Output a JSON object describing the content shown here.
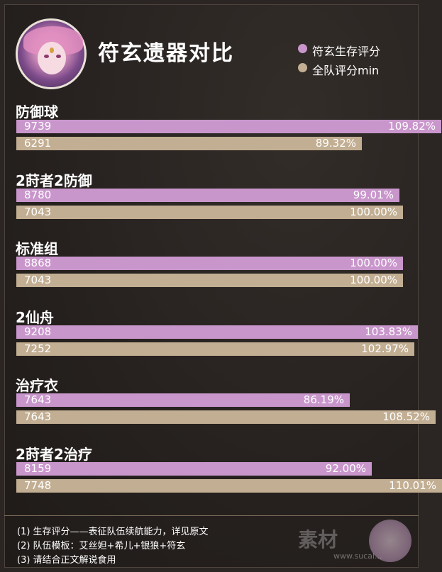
{
  "title": "符玄遗器对比",
  "legend": [
    {
      "label": "符玄生存评分",
      "color": "#c996cc"
    },
    {
      "label": "全队评分min",
      "color": "#c2ae92"
    }
  ],
  "colors": {
    "series1": "#c996cc",
    "series2": "#c2ae92",
    "background": "#26211f"
  },
  "chart_data": {
    "type": "bar",
    "orientation": "horizontal",
    "title": "符玄遗器对比",
    "categories": [
      "防御球",
      "2莳者2防御",
      "标准组",
      "2仙舟",
      "治疗衣",
      "2莳者2治疗"
    ],
    "series": [
      {
        "name": "符玄生存评分",
        "values": [
          9739,
          8780,
          8868,
          9208,
          7643,
          8159
        ],
        "percent_labels": [
          "109.82%",
          "99.01%",
          "100.00%",
          "103.83%",
          "86.19%",
          "92.00%"
        ]
      },
      {
        "name": "全队评分min",
        "values": [
          6291,
          7043,
          7043,
          7252,
          7643,
          7748
        ],
        "percent_labels": [
          "89.32%",
          "100.00%",
          "100.00%",
          "102.97%",
          "108.52%",
          "110.01%"
        ]
      }
    ],
    "percent_values": [
      [
        109.82,
        99.01,
        100.0,
        103.83,
        86.19,
        92.0
      ],
      [
        89.32,
        100.0,
        100.0,
        102.97,
        108.52,
        110.01
      ]
    ]
  },
  "notes": [
    "(1) 生存评分——表征队伍续航能力，详见原文",
    "(2) 队伍模板：艾丝妲+希儿+银狼+符玄",
    "(3) 请结合正文解说食用"
  ],
  "watermark": {
    "text": "素材",
    "url": "www.sucai..."
  }
}
